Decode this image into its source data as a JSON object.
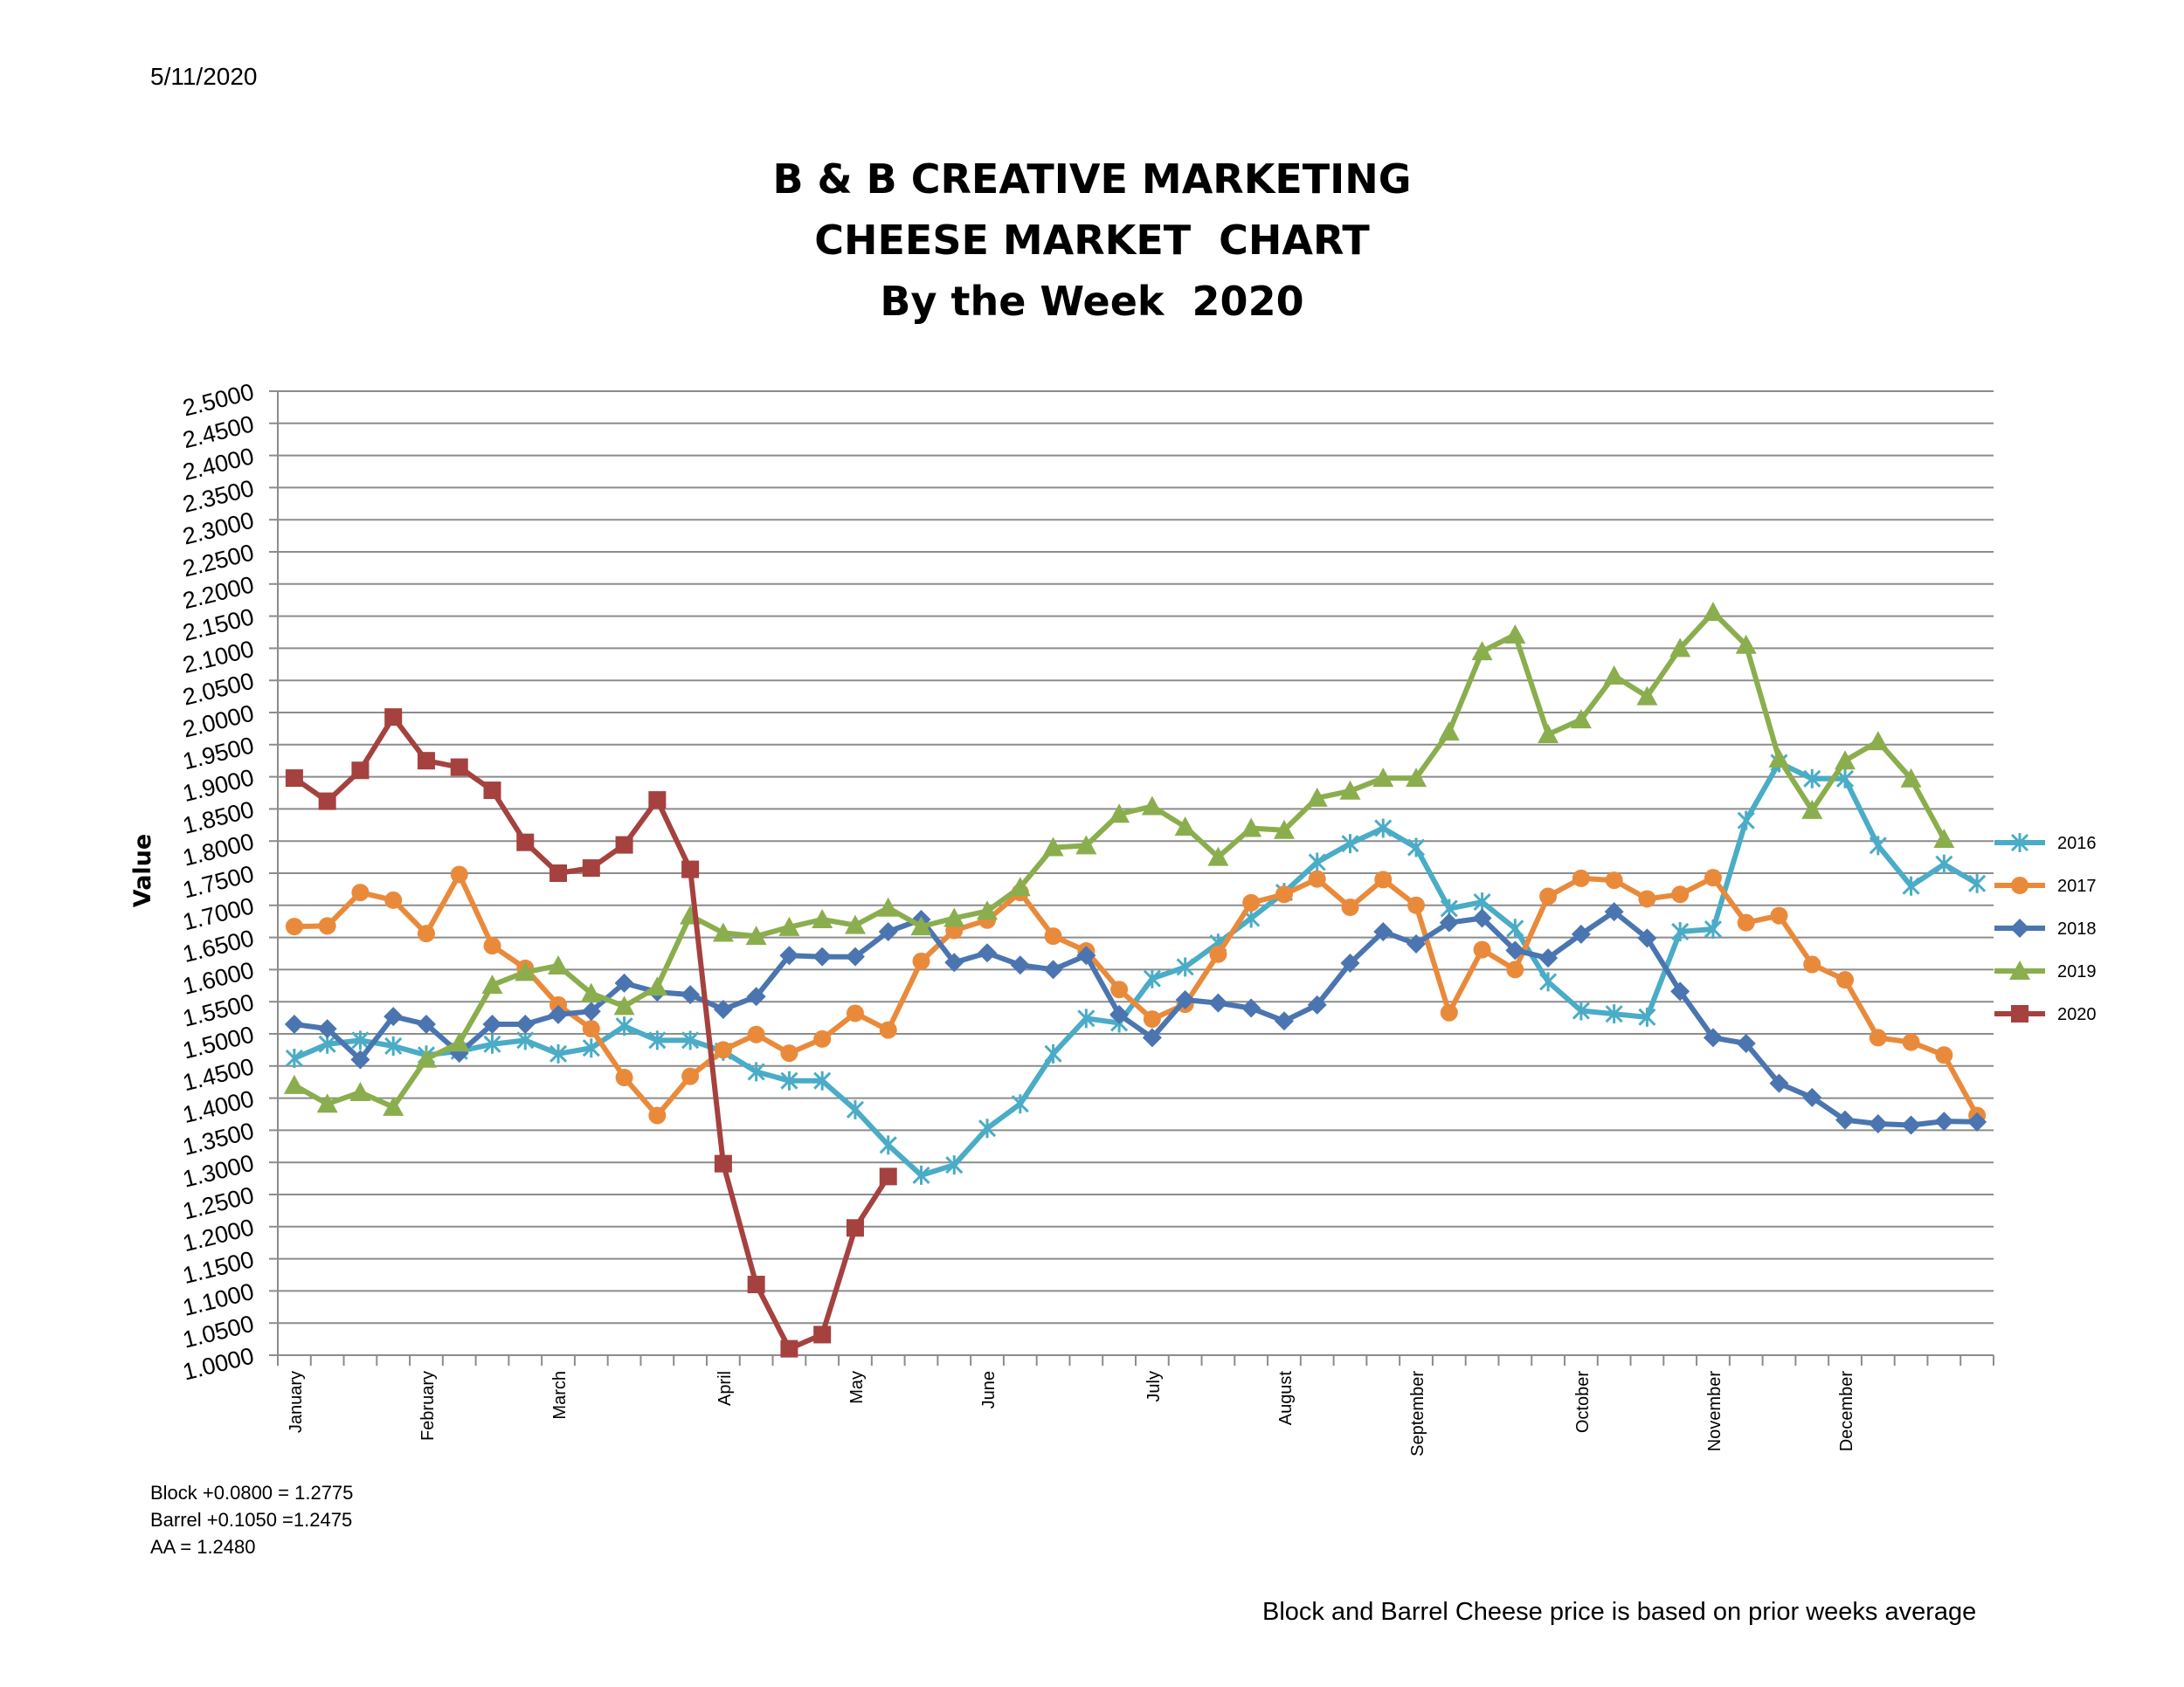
{
  "date": "5/11/2020",
  "title_lines": [
    "B & B CREATIVE MARKETING",
    "CHEESE MARKET  CHART",
    "By the Week  2020"
  ],
  "notes": [
    "Block +0.0800 = 1.2775",
    "Barrel +0.1050 =1.2475",
    "AA = 1.2480"
  ],
  "footer": "Block and Barrel Cheese price is based on prior weeks average",
  "chart_data": {
    "type": "line",
    "title": "B & B CREATIVE MARKETING CHEESE MARKET CHART By the Week 2020",
    "xlabel": "",
    "ylabel": "Value",
    "ylim": [
      1.0,
      2.5
    ],
    "ytick_step": 0.05,
    "yticks": [
      "1.0000",
      "1.0500",
      "1.1000",
      "1.1500",
      "1.2000",
      "1.2500",
      "1.3000",
      "1.3500",
      "1.4000",
      "1.4500",
      "1.5000",
      "1.5500",
      "1.6000",
      "1.6500",
      "1.7000",
      "1.7500",
      "1.8000",
      "1.8500",
      "1.9000",
      "1.9500",
      "2.0000",
      "2.0500",
      "2.1000",
      "2.1500",
      "2.2000",
      "2.2500",
      "2.3000",
      "2.3500",
      "2.4000",
      "2.4500",
      "2.5000"
    ],
    "grid": true,
    "legend_position": "right",
    "weeks": 52,
    "month_labels": [
      {
        "label": "January",
        "week": 1
      },
      {
        "label": "February",
        "week": 5
      },
      {
        "label": "March",
        "week": 9
      },
      {
        "label": "April",
        "week": 14
      },
      {
        "label": "May",
        "week": 18
      },
      {
        "label": "June",
        "week": 22
      },
      {
        "label": "July",
        "week": 27
      },
      {
        "label": "August",
        "week": 31
      },
      {
        "label": "September",
        "week": 35
      },
      {
        "label": "October",
        "week": 40
      },
      {
        "label": "November",
        "week": 44
      },
      {
        "label": "December",
        "week": 48
      }
    ],
    "series": [
      {
        "name": "2016",
        "color": "#4AACC6",
        "marker": "star",
        "values": [
          1.462,
          1.484,
          1.49,
          1.481,
          1.467,
          1.473,
          1.484,
          1.49,
          1.469,
          1.478,
          1.512,
          1.49,
          1.49,
          1.473,
          1.441,
          1.427,
          1.427,
          1.382,
          1.327,
          1.28,
          1.296,
          1.353,
          1.391,
          1.469,
          1.524,
          1.517,
          1.586,
          1.604,
          1.641,
          1.68,
          1.72,
          1.767,
          1.796,
          1.82,
          1.79,
          1.695,
          1.705,
          1.664,
          1.581,
          1.536,
          1.531,
          1.526,
          1.659,
          1.663,
          1.832,
          1.922,
          1.897,
          1.897,
          1.793,
          1.73,
          1.764,
          1.734
        ]
      },
      {
        "name": "2017",
        "color": "#E98A3B",
        "marker": "circle",
        "values": [
          1.667,
          1.668,
          1.72,
          1.708,
          1.656,
          1.748,
          1.637,
          1.602,
          1.545,
          1.508,
          1.432,
          1.373,
          1.434,
          1.475,
          1.499,
          1.47,
          1.492,
          1.532,
          1.506,
          1.613,
          1.661,
          1.677,
          1.72,
          1.652,
          1.629,
          1.569,
          1.523,
          1.546,
          1.624,
          1.704,
          1.717,
          1.741,
          1.697,
          1.74,
          1.7,
          1.533,
          1.631,
          1.6,
          1.714,
          1.742,
          1.739,
          1.71,
          1.717,
          1.743,
          1.673,
          1.684,
          1.608,
          1.584,
          1.494,
          1.487,
          1.467,
          1.373
        ]
      },
      {
        "name": "2018",
        "color": "#4A75B0",
        "marker": "diamond",
        "values": [
          1.515,
          1.508,
          1.46,
          1.527,
          1.515,
          1.47,
          1.515,
          1.515,
          1.53,
          1.535,
          1.579,
          1.565,
          1.561,
          1.538,
          1.558,
          1.622,
          1.62,
          1.62,
          1.659,
          1.678,
          1.611,
          1.626,
          1.607,
          1.6,
          1.622,
          1.53,
          1.494,
          1.553,
          1.548,
          1.54,
          1.52,
          1.545,
          1.61,
          1.659,
          1.64,
          1.673,
          1.68,
          1.63,
          1.618,
          1.655,
          1.69,
          1.649,
          1.566,
          1.494,
          1.485,
          1.423,
          1.401,
          1.366,
          1.36,
          1.358,
          1.364,
          1.363
        ]
      },
      {
        "name": "2019",
        "color": "#8AAE4D",
        "marker": "triangle",
        "values": [
          1.42,
          1.391,
          1.409,
          1.386,
          1.461,
          1.486,
          1.576,
          1.596,
          1.606,
          1.563,
          1.543,
          1.573,
          1.684,
          1.657,
          1.652,
          1.666,
          1.678,
          1.669,
          1.696,
          1.667,
          1.68,
          1.691,
          1.728,
          1.79,
          1.793,
          1.842,
          1.854,
          1.822,
          1.775,
          1.82,
          1.817,
          1.867,
          1.878,
          1.898,
          1.898,
          1.97,
          2.095,
          2.121,
          1.966,
          1.989,
          2.057,
          2.025,
          2.1,
          2.156,
          2.105,
          1.928,
          1.848,
          1.925,
          1.955,
          1.897,
          1.803,
          null
        ]
      },
      {
        "name": "2020",
        "color": "#A5413F",
        "marker": "square",
        "values": [
          1.898,
          1.862,
          1.91,
          1.993,
          1.925,
          1.915,
          1.879,
          1.798,
          1.75,
          1.758,
          1.794,
          1.864,
          1.756,
          1.298,
          1.11,
          1.01,
          1.032,
          1.198,
          1.278,
          null,
          null,
          null,
          null,
          null,
          null,
          null,
          null,
          null,
          null,
          null,
          null,
          null,
          null,
          null,
          null,
          null,
          null,
          null,
          null,
          null,
          null,
          null,
          null,
          null,
          null,
          null,
          null,
          null,
          null,
          null,
          null,
          null
        ]
      }
    ]
  }
}
